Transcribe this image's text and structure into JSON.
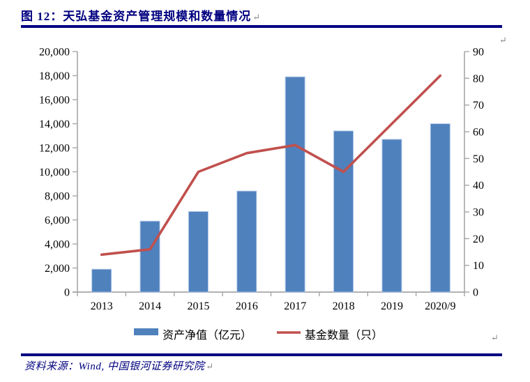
{
  "header": {
    "title": "图 12：天弘基金资产管理规模和数量情况",
    "title_color": "#000080",
    "return_mark": "↵"
  },
  "marks": {
    "return_mark": "↵"
  },
  "footer": {
    "source_text": "资料来源：Wind, 中国银河证券研究院",
    "return_mark": "↵"
  },
  "chart_data": {
    "type": "bar",
    "title": "",
    "categories": [
      "2013",
      "2014",
      "2015",
      "2016",
      "2017",
      "2018",
      "2019",
      "2020/9"
    ],
    "series": [
      {
        "name": "资产净值（亿元）",
        "kind": "bar",
        "axis": "left",
        "color": "#4F81BD",
        "edge_color": "#AEC6E8",
        "values": [
          1900,
          5900,
          6700,
          8400,
          17900,
          13400,
          12700,
          14000
        ]
      },
      {
        "name": "基金数量（只）",
        "kind": "line",
        "axis": "right",
        "color": "#C0504D",
        "values": [
          14,
          16,
          45,
          52,
          55,
          45,
          63,
          81
        ]
      }
    ],
    "left_axis": {
      "min": 0,
      "max": 20000,
      "step": 2000,
      "tick_labels": [
        "0",
        "2,000",
        "4,000",
        "6,000",
        "8,000",
        "10,000",
        "12,000",
        "14,000",
        "16,000",
        "18,000",
        "20,000"
      ]
    },
    "right_axis": {
      "min": 0,
      "max": 90,
      "step": 10,
      "tick_labels": [
        "0",
        "10",
        "20",
        "30",
        "40",
        "50",
        "60",
        "70",
        "80",
        "90"
      ]
    },
    "grid": false,
    "legend_position": "bottom",
    "axis_color": "#A6A6A6",
    "text_color": "#000000"
  }
}
